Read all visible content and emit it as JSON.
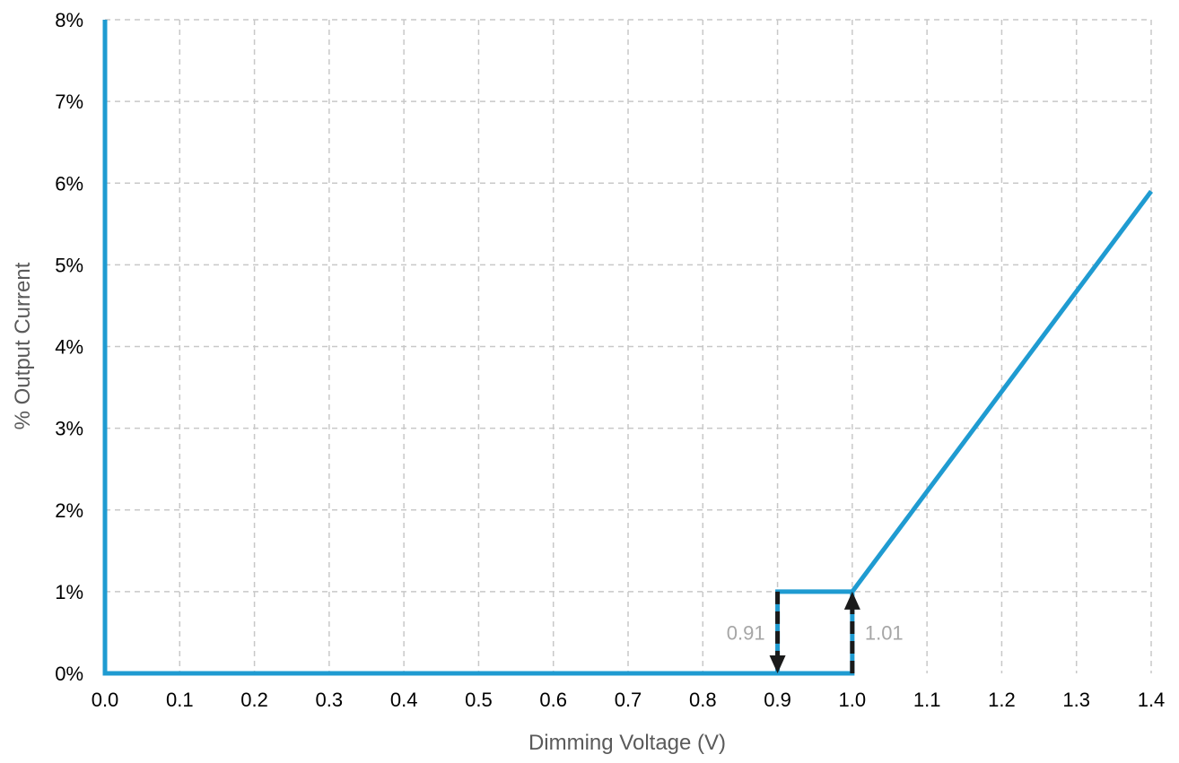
{
  "chart_data": {
    "type": "line",
    "xlabel": "Dimming Voltage (V)",
    "ylabel": "% Output Current",
    "xlim": [
      0.0,
      1.4
    ],
    "ylim": [
      0,
      8
    ],
    "x_ticks": [
      "0.0",
      "0.1",
      "0.2",
      "0.3",
      "0.4",
      "0.5",
      "0.6",
      "0.7",
      "0.8",
      "0.9",
      "1.0",
      "1.1",
      "1.2",
      "1.3",
      "1.4"
    ],
    "y_ticks": [
      "0%",
      "1%",
      "2%",
      "3%",
      "4%",
      "5%",
      "6%",
      "7%",
      "8%"
    ],
    "grid": true,
    "series": [
      {
        "color": "#1f9bd1",
        "points": [
          {
            "x": 0.0,
            "y": 8
          },
          {
            "x": 0.0,
            "y": 0
          },
          {
            "x": 0.9,
            "y": 0
          },
          {
            "x": 0.9,
            "y": 1
          },
          {
            "x": 1.0,
            "y": 1
          },
          {
            "x": 1.0,
            "y": 0
          },
          {
            "x": 0.9,
            "y": 0
          }
        ]
      },
      {
        "color": "#1f9bd1",
        "points": [
          {
            "x": 1.0,
            "y": 1
          },
          {
            "x": 1.4,
            "y": 5.9
          }
        ]
      }
    ],
    "annotations": [
      {
        "label": "0.91",
        "x": 0.9,
        "direction": "down",
        "from_y": 1,
        "to_y": 0
      },
      {
        "label": "1.01",
        "x": 1.0,
        "direction": "up",
        "from_y": 0,
        "to_y": 1
      }
    ],
    "colors": {
      "series": "#1f9bd1",
      "grid": "#c8c8c8",
      "arrow": "#1a1a1a",
      "annotation_text": "#a6a6a6",
      "axis_label_text": "#5a5a5a"
    }
  }
}
